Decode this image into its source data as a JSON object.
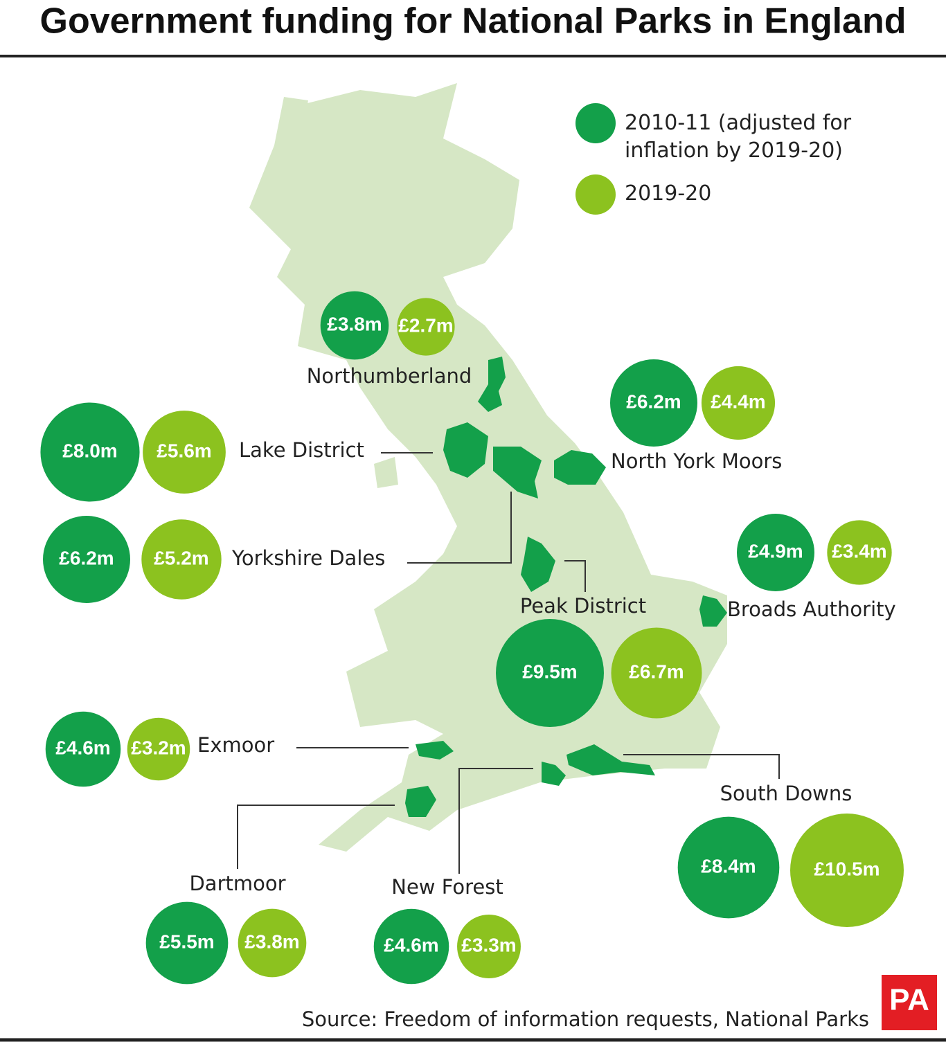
{
  "chart_data": {
    "type": "bubble",
    "title": "Government funding for National Parks in England",
    "categories": [
      "Northumberland",
      "Lake District",
      "Yorkshire Dales",
      "North York Moors",
      "Broads Authority",
      "Peak District",
      "Exmoor",
      "Dartmoor",
      "New Forest",
      "South Downs"
    ],
    "series": [
      {
        "name": "2010-11 (adjusted for inflation by 2019-20)",
        "color": "#13a04a",
        "values": [
          3.8,
          8.0,
          6.2,
          6.2,
          4.9,
          9.5,
          4.6,
          5.5,
          4.6,
          8.4
        ],
        "value_labels": [
          "£3.8m",
          "£8.0m",
          "£6.2m",
          "£6.2m",
          "£4.9m",
          "£9.5m",
          "£4.6m",
          "£5.5m",
          "£4.6m",
          "£8.4m"
        ]
      },
      {
        "name": "2019-20",
        "color": "#8cc21f",
        "values": [
          2.7,
          5.6,
          5.2,
          4.4,
          3.4,
          6.7,
          3.2,
          3.8,
          3.3,
          10.5
        ],
        "value_labels": [
          "£2.7m",
          "£5.6m",
          "£5.2m",
          "£4.4m",
          "£3.4m",
          "£6.7m",
          "£3.2m",
          "£3.8m",
          "£3.3m",
          "£10.5m"
        ]
      }
    ],
    "source": "Source: Freedom of information requests, National Parks",
    "logo": "PA"
  }
}
